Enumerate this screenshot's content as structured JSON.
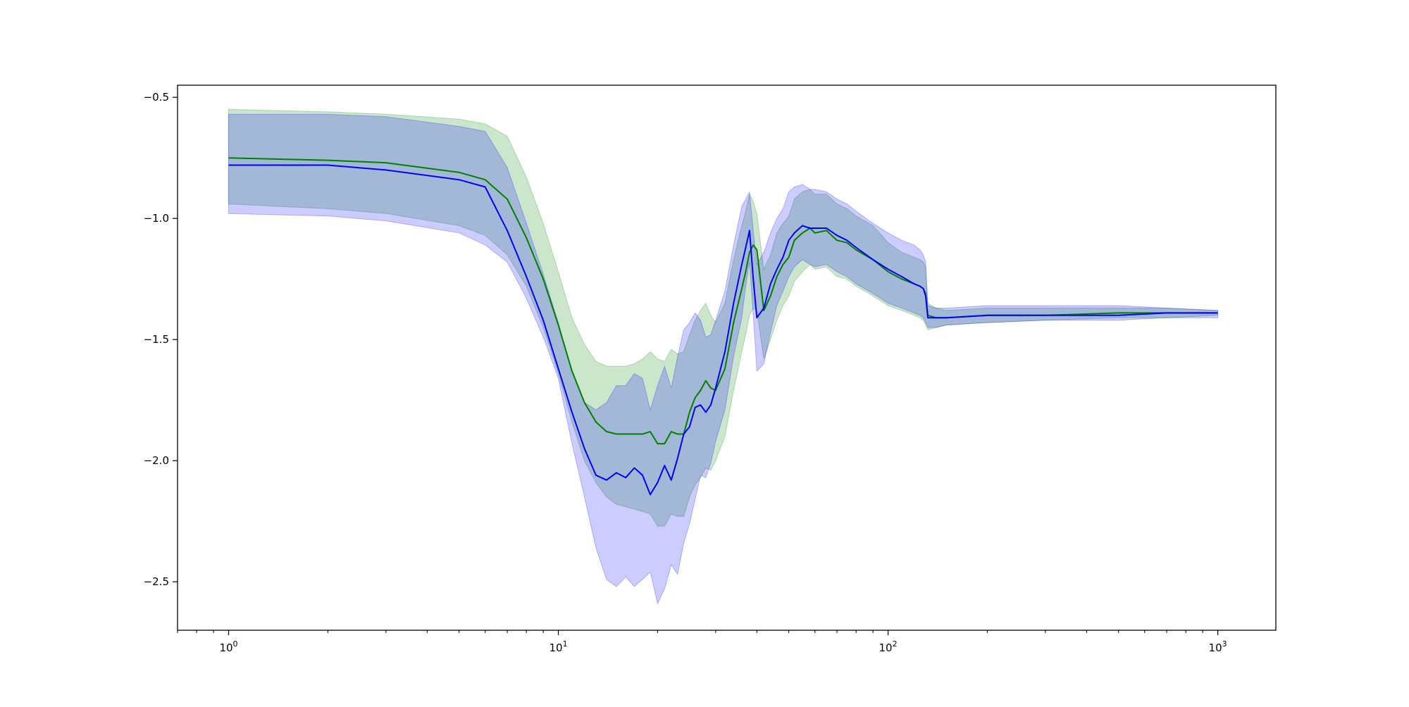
{
  "chart_data": {
    "type": "line",
    "title": "",
    "xlabel": "",
    "ylabel": "",
    "xscale": "log",
    "xlim": [
      0.7,
      1500
    ],
    "ylim": [
      -2.7,
      -0.45
    ],
    "grid": false,
    "legend": "none",
    "x_ticks": [
      {
        "value": 1,
        "base": "10",
        "exp": "0"
      },
      {
        "value": 10,
        "base": "10",
        "exp": "1"
      },
      {
        "value": 100,
        "base": "10",
        "exp": "2"
      },
      {
        "value": 1000,
        "base": "10",
        "exp": "3"
      }
    ],
    "y_ticks": [
      {
        "value": -0.5,
        "label": "−0.5"
      },
      {
        "value": -1.0,
        "label": "−1.0"
      },
      {
        "value": -1.5,
        "label": "−1.5"
      },
      {
        "value": -2.0,
        "label": "−2.0"
      },
      {
        "value": -2.5,
        "label": "−2.5"
      }
    ],
    "series": [
      {
        "color": "#008000",
        "band_color": "#008000",
        "band_opacity": 0.2,
        "x": [
          1,
          2,
          3,
          5,
          6,
          7,
          8,
          9,
          10,
          11,
          12,
          13,
          14,
          15,
          16,
          17,
          18,
          19,
          20,
          21,
          22,
          23,
          24,
          25,
          26,
          27,
          28,
          29,
          30,
          32,
          34,
          36,
          37,
          38,
          39,
          40,
          42,
          44,
          46,
          48,
          50,
          52,
          55,
          58,
          60,
          65,
          70,
          75,
          80,
          90,
          100,
          110,
          120,
          125,
          128,
          130,
          132,
          140,
          150,
          200,
          300,
          500,
          700,
          1000
        ],
        "y": [
          -0.75,
          -0.76,
          -0.77,
          -0.81,
          -0.84,
          -0.92,
          -1.08,
          -1.25,
          -1.44,
          -1.63,
          -1.76,
          -1.84,
          -1.88,
          -1.89,
          -1.89,
          -1.89,
          -1.89,
          -1.88,
          -1.93,
          -1.93,
          -1.88,
          -1.89,
          -1.89,
          -1.8,
          -1.74,
          -1.71,
          -1.67,
          -1.7,
          -1.71,
          -1.62,
          -1.43,
          -1.29,
          -1.22,
          -1.14,
          -1.11,
          -1.13,
          -1.38,
          -1.32,
          -1.24,
          -1.19,
          -1.16,
          -1.09,
          -1.06,
          -1.04,
          -1.06,
          -1.05,
          -1.09,
          -1.1,
          -1.13,
          -1.17,
          -1.22,
          -1.25,
          -1.27,
          -1.28,
          -1.29,
          -1.31,
          -1.4,
          -1.41,
          -1.41,
          -1.4,
          -1.4,
          -1.39,
          -1.39,
          -1.39
        ],
        "lower": [
          -0.94,
          -0.96,
          -0.98,
          -1.03,
          -1.07,
          -1.15,
          -1.28,
          -1.45,
          -1.64,
          -1.84,
          -2.0,
          -2.09,
          -2.15,
          -2.18,
          -2.19,
          -2.2,
          -2.21,
          -2.22,
          -2.27,
          -2.27,
          -2.22,
          -2.23,
          -2.23,
          -2.15,
          -2.1,
          -2.07,
          -2.03,
          -2.04,
          -2.0,
          -1.9,
          -1.71,
          -1.55,
          -1.48,
          -1.4,
          -1.37,
          -1.38,
          -1.58,
          -1.5,
          -1.42,
          -1.36,
          -1.32,
          -1.26,
          -1.22,
          -1.19,
          -1.21,
          -1.2,
          -1.24,
          -1.25,
          -1.28,
          -1.32,
          -1.36,
          -1.38,
          -1.4,
          -1.41,
          -1.42,
          -1.44,
          -1.46,
          -1.45,
          -1.44,
          -1.43,
          -1.42,
          -1.41,
          -1.41,
          -1.4
        ],
        "upper": [
          -0.55,
          -0.56,
          -0.57,
          -0.59,
          -0.61,
          -0.66,
          -0.83,
          -1.02,
          -1.22,
          -1.41,
          -1.52,
          -1.59,
          -1.61,
          -1.61,
          -1.61,
          -1.6,
          -1.58,
          -1.55,
          -1.58,
          -1.59,
          -1.54,
          -1.56,
          -1.55,
          -1.48,
          -1.42,
          -1.38,
          -1.35,
          -1.4,
          -1.43,
          -1.35,
          -1.17,
          -1.03,
          -0.97,
          -0.9,
          -0.93,
          -0.98,
          -1.21,
          -1.15,
          -1.06,
          -1.02,
          -0.99,
          -0.92,
          -0.89,
          -0.88,
          -0.9,
          -0.9,
          -0.94,
          -0.96,
          -0.99,
          -1.03,
          -1.1,
          -1.14,
          -1.16,
          -1.17,
          -1.18,
          -1.2,
          -1.35,
          -1.37,
          -1.38,
          -1.37,
          -1.37,
          -1.37,
          -1.37,
          -1.38
        ]
      },
      {
        "color": "#0000ff",
        "band_color": "#0000ff",
        "band_opacity": 0.2,
        "x": [
          1,
          2,
          3,
          5,
          6,
          7,
          8,
          9,
          10,
          11,
          12,
          13,
          14,
          15,
          16,
          17,
          18,
          19,
          20,
          21,
          22,
          23,
          24,
          25,
          26,
          27,
          28,
          29,
          30,
          32,
          34,
          36,
          37,
          38,
          39,
          40,
          42,
          44,
          46,
          48,
          50,
          52,
          55,
          58,
          60,
          65,
          70,
          75,
          80,
          90,
          100,
          110,
          120,
          125,
          128,
          130,
          132,
          140,
          150,
          200,
          300,
          500,
          700,
          1000
        ],
        "y": [
          -0.78,
          -0.78,
          -0.8,
          -0.84,
          -0.87,
          -1.05,
          -1.24,
          -1.42,
          -1.62,
          -1.8,
          -1.95,
          -2.06,
          -2.08,
          -2.05,
          -2.07,
          -2.03,
          -2.06,
          -2.14,
          -2.09,
          -2.02,
          -2.08,
          -1.99,
          -1.89,
          -1.86,
          -1.78,
          -1.77,
          -1.8,
          -1.77,
          -1.7,
          -1.55,
          -1.35,
          -1.19,
          -1.12,
          -1.05,
          -1.25,
          -1.41,
          -1.37,
          -1.27,
          -1.21,
          -1.16,
          -1.09,
          -1.06,
          -1.03,
          -1.04,
          -1.04,
          -1.04,
          -1.07,
          -1.09,
          -1.12,
          -1.17,
          -1.21,
          -1.24,
          -1.27,
          -1.28,
          -1.29,
          -1.32,
          -1.41,
          -1.41,
          -1.41,
          -1.4,
          -1.4,
          -1.4,
          -1.39,
          -1.39
        ],
        "lower": [
          -0.98,
          -0.99,
          -1.01,
          -1.06,
          -1.11,
          -1.18,
          -1.33,
          -1.49,
          -1.66,
          -1.93,
          -2.15,
          -2.36,
          -2.49,
          -2.52,
          -2.48,
          -2.52,
          -2.49,
          -2.46,
          -2.59,
          -2.53,
          -2.43,
          -2.47,
          -2.34,
          -2.26,
          -2.16,
          -2.06,
          -2.07,
          -2.01,
          -1.92,
          -1.79,
          -1.57,
          -1.41,
          -1.28,
          -1.18,
          -1.4,
          -1.63,
          -1.6,
          -1.47,
          -1.36,
          -1.3,
          -1.24,
          -1.2,
          -1.17,
          -1.19,
          -1.2,
          -1.19,
          -1.22,
          -1.24,
          -1.27,
          -1.31,
          -1.35,
          -1.37,
          -1.39,
          -1.4,
          -1.41,
          -1.43,
          -1.45,
          -1.45,
          -1.44,
          -1.43,
          -1.42,
          -1.42,
          -1.41,
          -1.41
        ],
        "upper": [
          -0.57,
          -0.57,
          -0.58,
          -0.62,
          -0.64,
          -0.79,
          -1.02,
          -1.23,
          -1.43,
          -1.63,
          -1.76,
          -1.79,
          -1.76,
          -1.69,
          -1.69,
          -1.64,
          -1.66,
          -1.79,
          -1.69,
          -1.61,
          -1.7,
          -1.57,
          -1.46,
          -1.43,
          -1.39,
          -1.42,
          -1.49,
          -1.48,
          -1.42,
          -1.3,
          -1.11,
          -0.95,
          -0.92,
          -0.89,
          -1.05,
          -1.19,
          -1.14,
          -1.06,
          -1.0,
          -0.96,
          -0.89,
          -0.87,
          -0.86,
          -0.88,
          -0.88,
          -0.89,
          -0.92,
          -0.94,
          -0.97,
          -1.02,
          -1.06,
          -1.09,
          -1.11,
          -1.13,
          -1.15,
          -1.18,
          -1.36,
          -1.37,
          -1.37,
          -1.36,
          -1.36,
          -1.36,
          -1.37,
          -1.38
        ]
      }
    ]
  }
}
